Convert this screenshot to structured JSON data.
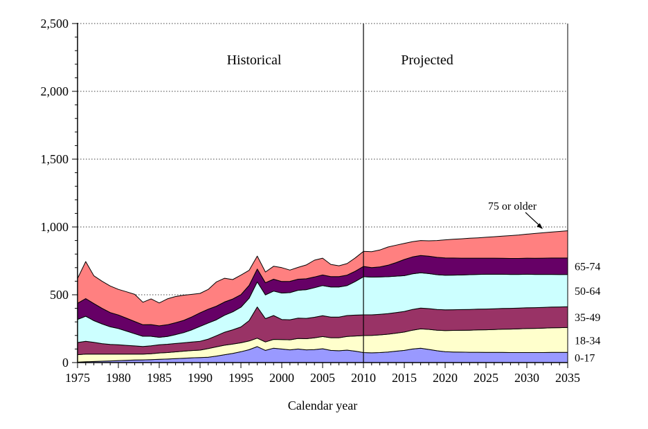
{
  "chart_data": {
    "type": "area",
    "stacked": true,
    "xlabel": "Calendar year",
    "region_labels": {
      "historical": "Historical",
      "projected": "Projected"
    },
    "divider_year": 2010,
    "annotation": {
      "text": "75 or older",
      "target_series": "75 or older"
    },
    "x_start": 1975,
    "x_end": 2035,
    "x_major_step": 5,
    "x_minor_step": 1,
    "ylim": [
      0,
      2500
    ],
    "y_major_ticks": [
      0,
      500,
      1000,
      1500,
      2000,
      2500
    ],
    "y_tick_labels": [
      "0",
      "500",
      "1,000",
      "1,500",
      "2,000",
      "2,500"
    ],
    "y_minor_step": 100,
    "grid": "dotted-horizontal-majors",
    "edge_labels": [
      "0-17",
      "18-34",
      "35-49",
      "50-64",
      "65-74"
    ],
    "palette": {
      "age_0_17": "#9999FF",
      "age_18_34": "#FFFFCC",
      "age_35_49": "#993366",
      "age_50_64": "#CCFFFF",
      "age_65_74": "#660066",
      "age_75_plus": "#FF8080",
      "outline": "#000000"
    },
    "years": [
      1975,
      1976,
      1977,
      1978,
      1979,
      1980,
      1981,
      1982,
      1983,
      1984,
      1985,
      1986,
      1987,
      1988,
      1989,
      1990,
      1991,
      1992,
      1993,
      1994,
      1995,
      1996,
      1997,
      1998,
      1999,
      2000,
      2001,
      2002,
      2003,
      2004,
      2005,
      2006,
      2007,
      2008,
      2009,
      2010,
      2011,
      2012,
      2013,
      2014,
      2015,
      2016,
      2017,
      2018,
      2019,
      2020,
      2021,
      2022,
      2023,
      2024,
      2025,
      2026,
      2027,
      2028,
      2029,
      2030,
      2031,
      2032,
      2033,
      2034,
      2035
    ],
    "series": [
      {
        "name": "0-17",
        "color": "#9999FF",
        "values": [
          3,
          6,
          8,
          10,
          12,
          15,
          17,
          19,
          20,
          22,
          24,
          26,
          29,
          32,
          35,
          37,
          40,
          48,
          58,
          68,
          80,
          95,
          118,
          90,
          106,
          100,
          94,
          100,
          94,
          96,
          102,
          90,
          87,
          92,
          84,
          74,
          72,
          74,
          78,
          84,
          90,
          100,
          106,
          97,
          87,
          80,
          78,
          77,
          76,
          76,
          75,
          75,
          75,
          74,
          74,
          74,
          74,
          74,
          75,
          75,
          75
        ]
      },
      {
        "name": "18-34",
        "color": "#FFFFCC",
        "values": [
          55,
          57,
          55,
          52,
          50,
          48,
          46,
          44,
          42,
          43,
          47,
          48,
          50,
          52,
          54,
          55,
          63,
          68,
          70,
          68,
          66,
          64,
          62,
          62,
          65,
          70,
          74,
          78,
          82,
          86,
          90,
          93,
          96,
          101,
          112,
          125,
          128,
          130,
          131,
          133,
          135,
          139,
          143,
          148,
          152,
          156,
          159,
          161,
          163,
          165,
          167,
          169,
          171,
          173,
          175,
          177,
          178,
          180,
          181,
          182,
          184
        ]
      },
      {
        "name": "35-49",
        "color": "#993366",
        "values": [
          90,
          94,
          86,
          78,
          72,
          68,
          64,
          60,
          57,
          59,
          60,
          61,
          62,
          62,
          63,
          65,
          70,
          82,
          96,
          106,
          117,
          150,
          230,
          172,
          176,
          148,
          148,
          150,
          150,
          152,
          154,
          152,
          152,
          154,
          154,
          153,
          152,
          152,
          152,
          152,
          152,
          153,
          153,
          153,
          153,
          153,
          153,
          153,
          153,
          153,
          153,
          153,
          153,
          153,
          153,
          153,
          153,
          153,
          153,
          153,
          153
        ]
      },
      {
        "name": "50-64",
        "color": "#CCFFFF",
        "values": [
          170,
          185,
          160,
          145,
          130,
          120,
          105,
          90,
          75,
          70,
          55,
          58,
          65,
          75,
          90,
          110,
          119,
          118,
          125,
          132,
          145,
          165,
          185,
          175,
          180,
          195,
          200,
          205,
          212,
          218,
          222,
          222,
          222,
          221,
          248,
          281,
          278,
          275,
          272,
          268,
          264,
          262,
          260,
          258,
          256,
          255,
          255,
          255,
          256,
          256,
          256,
          254,
          252,
          250,
          248,
          247,
          245,
          243,
          241,
          239,
          238
        ]
      },
      {
        "name": "65-74",
        "color": "#660066",
        "values": [
          119,
          130,
          126,
          115,
          105,
          100,
          95,
          90,
          85,
          86,
          85,
          86,
          88,
          90,
          95,
          100,
          102,
          100,
          98,
          95,
          93,
          95,
          95,
          90,
          88,
          85,
          83,
          82,
          80,
          79,
          78,
          77,
          77,
          77,
          76,
          76,
          70,
          74,
          85,
          100,
          119,
          125,
          128,
          128,
          128,
          128,
          126,
          124,
          122,
          120,
          119,
          119,
          118,
          118,
          118,
          119,
          119,
          120,
          121,
          122,
          122
        ]
      },
      {
        "name": "75 or older",
        "color": "#FF8080",
        "values": [
          183,
          273,
          205,
          200,
          196,
          189,
          195,
          200,
          166,
          190,
          169,
          191,
          193,
          186,
          166,
          143,
          146,
          179,
          175,
          143,
          144,
          111,
          95,
          79,
          95,
          102,
          83,
          87,
          102,
          124,
          124,
          90,
          80,
          85,
          98,
          111,
          118,
          125,
          134,
          129,
          119,
          113,
          110,
          114,
          124,
          133,
          138,
          143,
          147,
          150,
          154,
          158,
          163,
          168,
          173,
          177,
          183,
          187,
          191,
          196,
          200
        ]
      }
    ]
  }
}
